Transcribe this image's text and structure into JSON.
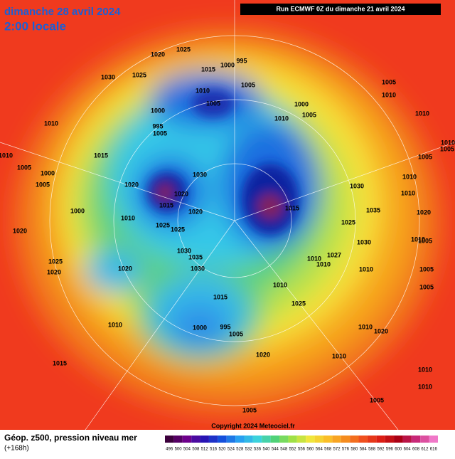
{
  "header": {
    "title": "dimanche 28 avril 2024",
    "time": "2:00 locale",
    "run": "Run ECMWF 0Z du dimanche 21 avril 2024"
  },
  "footer": {
    "caption": "Géop. z500, pression niveau mer",
    "lead": "(+168h)",
    "copyright": "Copyright 2024 Meteociel.fr"
  },
  "scale": {
    "ticks": [
      496,
      500,
      504,
      508,
      512,
      516,
      520,
      524,
      528,
      532,
      536,
      540,
      544,
      548,
      552,
      556,
      560,
      564,
      568,
      572,
      576,
      580,
      584,
      588,
      592,
      596,
      600,
      604,
      608,
      612,
      616
    ]
  },
  "isobar_labels": [
    "1025",
    "1020",
    "1030",
    "1025",
    "1000",
    "995",
    "1015",
    "1005",
    "1010",
    "1005",
    "1000",
    "995",
    "1005",
    "1010",
    "1010",
    "1015",
    "1005",
    "1000",
    "1005",
    "1020",
    "1030",
    "1020",
    "1015",
    "1020",
    "1000",
    "1010",
    "1025",
    "1025",
    "1020",
    "1030",
    "1035",
    "1030",
    "1025",
    "1020",
    "1020",
    "1010",
    "1015",
    "1015",
    "1000",
    "995",
    "1005",
    "1020",
    "1000",
    "1005",
    "1010",
    "1005",
    "1010",
    "1010",
    "1005",
    "1010",
    "1005",
    "1010",
    "1010",
    "1015",
    "1030",
    "1035",
    "1030",
    "1025",
    "1020",
    "1010",
    "1005",
    "1027",
    "1010",
    "1010",
    "1010",
    "1005",
    "1005",
    "1010",
    "1025",
    "1010",
    "1020",
    "1010",
    "1010",
    "1010",
    "1005",
    "1005"
  ]
}
